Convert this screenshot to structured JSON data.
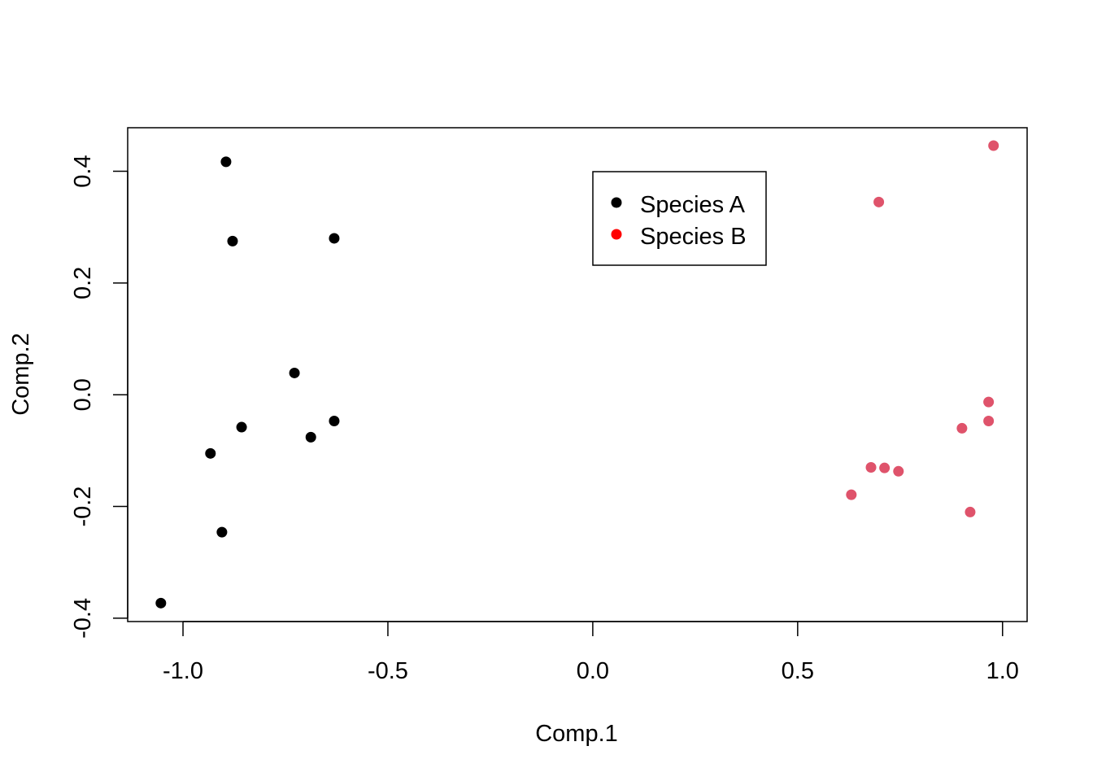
{
  "chart_data": {
    "type": "scatter",
    "title": "",
    "xlabel": "Comp.1",
    "ylabel": "Comp.2",
    "xlim": [
      -1.135,
      1.06
    ],
    "ylim": [
      -0.406,
      0.478
    ],
    "grid": false,
    "x_ticks": [
      -1.0,
      -0.5,
      0.0,
      0.5,
      1.0
    ],
    "x_tick_labels": [
      "-1.0",
      "-0.5",
      "0.0",
      "0.5",
      "1.0"
    ],
    "y_ticks": [
      -0.4,
      -0.2,
      0.0,
      0.2,
      0.4
    ],
    "y_tick_labels": [
      "-0.4",
      "-0.2",
      "0.0",
      "0.2",
      "0.4"
    ],
    "legend": {
      "placement": "top-center",
      "entries": [
        {
          "label": "Species A",
          "color": "#000000"
        },
        {
          "label": "Species B",
          "color": "#FF0000"
        }
      ]
    },
    "series": [
      {
        "name": "Species A",
        "color": "#000000",
        "points": [
          [
            -0.895,
            0.417
          ],
          [
            -0.879,
            0.275
          ],
          [
            -0.631,
            0.28
          ],
          [
            -0.728,
            0.039
          ],
          [
            -0.857,
            -0.058
          ],
          [
            -0.631,
            -0.047
          ],
          [
            -0.688,
            -0.076
          ],
          [
            -0.933,
            -0.105
          ],
          [
            -0.905,
            -0.246
          ],
          [
            -1.054,
            -0.373
          ]
        ]
      },
      {
        "name": "Species B",
        "color": "#DF536B",
        "points": [
          [
            0.978,
            0.446
          ],
          [
            0.698,
            0.345
          ],
          [
            0.966,
            -0.013
          ],
          [
            0.901,
            -0.06
          ],
          [
            0.966,
            -0.047
          ],
          [
            0.679,
            -0.13
          ],
          [
            0.712,
            -0.131
          ],
          [
            0.746,
            -0.137
          ],
          [
            0.631,
            -0.179
          ],
          [
            0.921,
            -0.21
          ]
        ]
      }
    ]
  }
}
